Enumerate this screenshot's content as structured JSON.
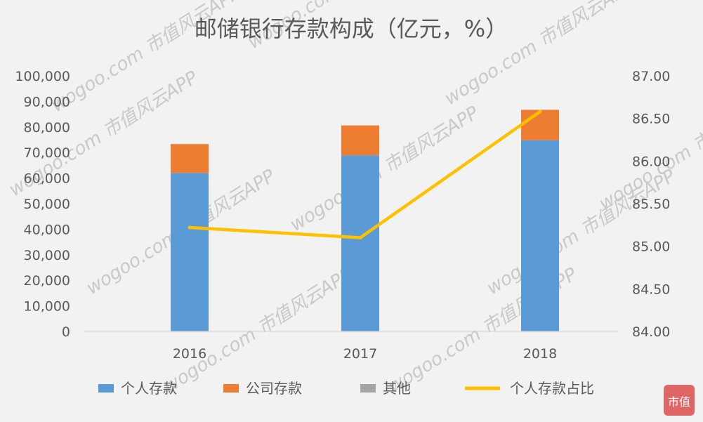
{
  "chart_data": {
    "type": "bar",
    "title": "邮储银行存款构成（亿元，%）",
    "categories": [
      "2016",
      "2017",
      "2018"
    ],
    "series": [
      {
        "name": "个人存款",
        "type": "bar",
        "axis": "left",
        "stack": true,
        "color": "#5b9bd5",
        "values": [
          62000,
          68900,
          74800
        ]
      },
      {
        "name": "公司存款",
        "type": "bar",
        "axis": "left",
        "stack": true,
        "color": "#ed7d31",
        "values": [
          11300,
          11700,
          11900
        ]
      },
      {
        "name": "其他",
        "type": "bar",
        "axis": "left",
        "stack": true,
        "color": "#a5a5a5",
        "values": [
          0,
          0,
          0
        ]
      },
      {
        "name": "个人存款占比",
        "type": "line",
        "axis": "right",
        "color": "#ffc000",
        "values": [
          85.22,
          85.1,
          86.58
        ]
      }
    ],
    "y_left": {
      "min": 0,
      "max": 100000,
      "step": 10000,
      "ticks": [
        "0",
        "10,000",
        "20,000",
        "30,000",
        "40,000",
        "50,000",
        "60,000",
        "70,000",
        "80,000",
        "90,000",
        "100,000"
      ]
    },
    "y_right": {
      "min": 84.0,
      "max": 87.0,
      "step": 0.5,
      "ticks": [
        "84.00",
        "84.50",
        "85.00",
        "85.50",
        "86.00",
        "86.50",
        "87.00"
      ]
    },
    "grid": false,
    "legend": "bottom"
  },
  "watermark": {
    "text": "wogoo.com 市值风云APP",
    "logo_text": "市值"
  }
}
